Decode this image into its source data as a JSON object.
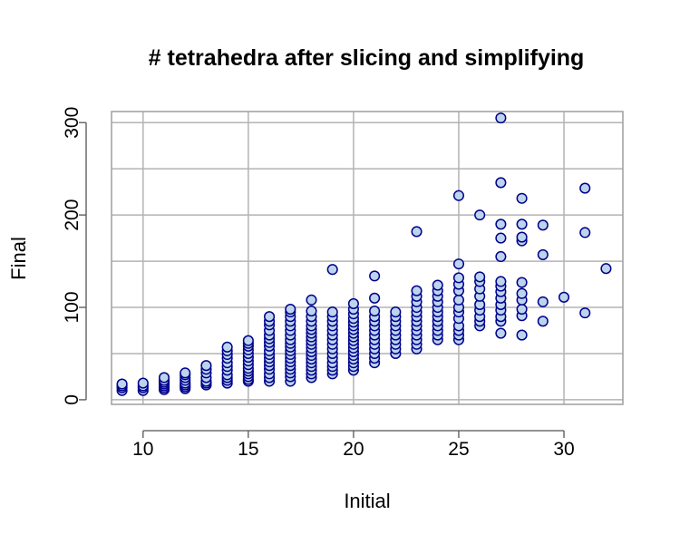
{
  "chart_data": {
    "type": "scatter",
    "title": "# tetrahedra after slicing and simplifying",
    "xlabel": "Initial",
    "ylabel": "Final",
    "xlim": [
      8.5,
      32.8
    ],
    "ylim": [
      -5,
      312
    ],
    "xticks": [
      10,
      15,
      20,
      25,
      30
    ],
    "yticks": [
      0,
      100,
      200,
      300
    ],
    "grid": true,
    "marker_fill": "#bcd4ec",
    "marker_stroke": "#00008b",
    "gridline_color": "#b3b3b3",
    "series": [
      {
        "points": [
          [
            9,
            10
          ],
          [
            9,
            13
          ],
          [
            9,
            15
          ],
          [
            9,
            17
          ],
          [
            10,
            10
          ],
          [
            10,
            13
          ],
          [
            10,
            15
          ],
          [
            10,
            18
          ],
          [
            11,
            11
          ],
          [
            11,
            13
          ],
          [
            11,
            15
          ],
          [
            11,
            17
          ],
          [
            11,
            19
          ],
          [
            11,
            21
          ],
          [
            11,
            24
          ],
          [
            12,
            12
          ],
          [
            12,
            14
          ],
          [
            12,
            16
          ],
          [
            12,
            18
          ],
          [
            12,
            21
          ],
          [
            12,
            24
          ],
          [
            12,
            27
          ],
          [
            12,
            29
          ],
          [
            13,
            16
          ],
          [
            13,
            18
          ],
          [
            13,
            20
          ],
          [
            13,
            24
          ],
          [
            13,
            29
          ],
          [
            13,
            33
          ],
          [
            13,
            37
          ],
          [
            14,
            18
          ],
          [
            14,
            21
          ],
          [
            14,
            24
          ],
          [
            14,
            27
          ],
          [
            14,
            32
          ],
          [
            14,
            36
          ],
          [
            14,
            40
          ],
          [
            14,
            45
          ],
          [
            14,
            49
          ],
          [
            14,
            53
          ],
          [
            14,
            57
          ],
          [
            15,
            20
          ],
          [
            15,
            22
          ],
          [
            15,
            25
          ],
          [
            15,
            28
          ],
          [
            15,
            31
          ],
          [
            15,
            34
          ],
          [
            15,
            38
          ],
          [
            15,
            42
          ],
          [
            15,
            46
          ],
          [
            15,
            50
          ],
          [
            15,
            54
          ],
          [
            15,
            58
          ],
          [
            15,
            61
          ],
          [
            15,
            64
          ],
          [
            16,
            20
          ],
          [
            16,
            24
          ],
          [
            16,
            28
          ],
          [
            16,
            33
          ],
          [
            16,
            37
          ],
          [
            16,
            41
          ],
          [
            16,
            45
          ],
          [
            16,
            49
          ],
          [
            16,
            53
          ],
          [
            16,
            58
          ],
          [
            16,
            62
          ],
          [
            16,
            66
          ],
          [
            16,
            70
          ],
          [
            16,
            75
          ],
          [
            16,
            81
          ],
          [
            16,
            85
          ],
          [
            16,
            90
          ],
          [
            17,
            20
          ],
          [
            17,
            25
          ],
          [
            17,
            29
          ],
          [
            17,
            33
          ],
          [
            17,
            37
          ],
          [
            17,
            41
          ],
          [
            17,
            45
          ],
          [
            17,
            49
          ],
          [
            17,
            53
          ],
          [
            17,
            57
          ],
          [
            17,
            61
          ],
          [
            17,
            65
          ],
          [
            17,
            70
          ],
          [
            17,
            75
          ],
          [
            17,
            80
          ],
          [
            17,
            85
          ],
          [
            17,
            90
          ],
          [
            17,
            95
          ],
          [
            17,
            98
          ],
          [
            18,
            24
          ],
          [
            18,
            28
          ],
          [
            18,
            32
          ],
          [
            18,
            36
          ],
          [
            18,
            40
          ],
          [
            18,
            44
          ],
          [
            18,
            48
          ],
          [
            18,
            52
          ],
          [
            18,
            56
          ],
          [
            18,
            60
          ],
          [
            18,
            64
          ],
          [
            18,
            68
          ],
          [
            18,
            72
          ],
          [
            18,
            76
          ],
          [
            18,
            80
          ],
          [
            18,
            85
          ],
          [
            18,
            90
          ],
          [
            18,
            96
          ],
          [
            18,
            108
          ],
          [
            19,
            28
          ],
          [
            19,
            32
          ],
          [
            19,
            36
          ],
          [
            19,
            40
          ],
          [
            19,
            45
          ],
          [
            19,
            50
          ],
          [
            19,
            55
          ],
          [
            19,
            60
          ],
          [
            19,
            65
          ],
          [
            19,
            70
          ],
          [
            19,
            75
          ],
          [
            19,
            80
          ],
          [
            19,
            85
          ],
          [
            19,
            90
          ],
          [
            19,
            95
          ],
          [
            19,
            141
          ],
          [
            20,
            32
          ],
          [
            20,
            36
          ],
          [
            20,
            40
          ],
          [
            20,
            44
          ],
          [
            20,
            48
          ],
          [
            20,
            52
          ],
          [
            20,
            56
          ],
          [
            20,
            60
          ],
          [
            20,
            64
          ],
          [
            20,
            68
          ],
          [
            20,
            72
          ],
          [
            20,
            76
          ],
          [
            20,
            80
          ],
          [
            20,
            84
          ],
          [
            20,
            88
          ],
          [
            20,
            93
          ],
          [
            20,
            98
          ],
          [
            20,
            104
          ],
          [
            21,
            40
          ],
          [
            21,
            45
          ],
          [
            21,
            50
          ],
          [
            21,
            55
          ],
          [
            21,
            60
          ],
          [
            21,
            65
          ],
          [
            21,
            70
          ],
          [
            21,
            75
          ],
          [
            21,
            80
          ],
          [
            21,
            85
          ],
          [
            21,
            90
          ],
          [
            21,
            96
          ],
          [
            21,
            110
          ],
          [
            21,
            134
          ],
          [
            22,
            50
          ],
          [
            22,
            55
          ],
          [
            22,
            60
          ],
          [
            22,
            65
          ],
          [
            22,
            70
          ],
          [
            22,
            75
          ],
          [
            22,
            80
          ],
          [
            22,
            85
          ],
          [
            22,
            90
          ],
          [
            22,
            95
          ],
          [
            23,
            55
          ],
          [
            23,
            60
          ],
          [
            23,
            65
          ],
          [
            23,
            70
          ],
          [
            23,
            75
          ],
          [
            23,
            80
          ],
          [
            23,
            85
          ],
          [
            23,
            90
          ],
          [
            23,
            95
          ],
          [
            23,
            100
          ],
          [
            23,
            106
          ],
          [
            23,
            112
          ],
          [
            23,
            118
          ],
          [
            23,
            182
          ],
          [
            24,
            65
          ],
          [
            24,
            70
          ],
          [
            24,
            75
          ],
          [
            24,
            80
          ],
          [
            24,
            85
          ],
          [
            24,
            90
          ],
          [
            24,
            95
          ],
          [
            24,
            100
          ],
          [
            24,
            106
          ],
          [
            24,
            112
          ],
          [
            24,
            118
          ],
          [
            24,
            124
          ],
          [
            25,
            65
          ],
          [
            25,
            70
          ],
          [
            25,
            75
          ],
          [
            25,
            80
          ],
          [
            25,
            88
          ],
          [
            25,
            95
          ],
          [
            25,
            100
          ],
          [
            25,
            108
          ],
          [
            25,
            118
          ],
          [
            25,
            125
          ],
          [
            25,
            132
          ],
          [
            25,
            147
          ],
          [
            25,
            221
          ],
          [
            26,
            80
          ],
          [
            26,
            85
          ],
          [
            26,
            90
          ],
          [
            26,
            97
          ],
          [
            26,
            103
          ],
          [
            26,
            112
          ],
          [
            26,
            120
          ],
          [
            26,
            128
          ],
          [
            26,
            133
          ],
          [
            26,
            200
          ],
          [
            27,
            72
          ],
          [
            27,
            85
          ],
          [
            27,
            90
          ],
          [
            27,
            97
          ],
          [
            27,
            103
          ],
          [
            27,
            110
          ],
          [
            27,
            117
          ],
          [
            27,
            123
          ],
          [
            27,
            128
          ],
          [
            27,
            155
          ],
          [
            27,
            175
          ],
          [
            27,
            190
          ],
          [
            27,
            235
          ],
          [
            27,
            305
          ],
          [
            28,
            70
          ],
          [
            28,
            91
          ],
          [
            28,
            98
          ],
          [
            28,
            108
          ],
          [
            28,
            115
          ],
          [
            28,
            127
          ],
          [
            28,
            172
          ],
          [
            28,
            176
          ],
          [
            28,
            190
          ],
          [
            28,
            218
          ],
          [
            29,
            85
          ],
          [
            29,
            106
          ],
          [
            29,
            157
          ],
          [
            29,
            189
          ],
          [
            30,
            111
          ],
          [
            31,
            94
          ],
          [
            31,
            181
          ],
          [
            31,
            229
          ],
          [
            32,
            142
          ]
        ]
      }
    ]
  }
}
